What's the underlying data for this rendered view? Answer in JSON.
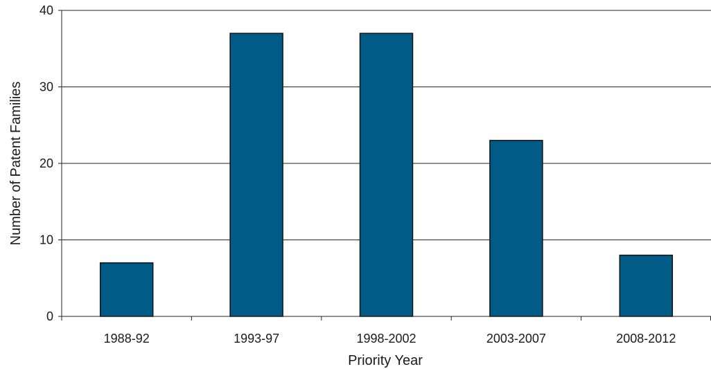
{
  "chart_data": {
    "type": "bar",
    "title": "",
    "xlabel": "Priority Year",
    "ylabel": "Number of Patent Families",
    "categories": [
      "1988-92",
      "1993-97",
      "1998-2002",
      "2003-2007",
      "2008-2012"
    ],
    "values": [
      7,
      37,
      37,
      23,
      8
    ],
    "ylim": [
      0,
      40
    ],
    "yticks": [
      "0",
      "10",
      "20",
      "30",
      "40"
    ],
    "grid": "horizontal",
    "bar_color": "#005c86"
  }
}
